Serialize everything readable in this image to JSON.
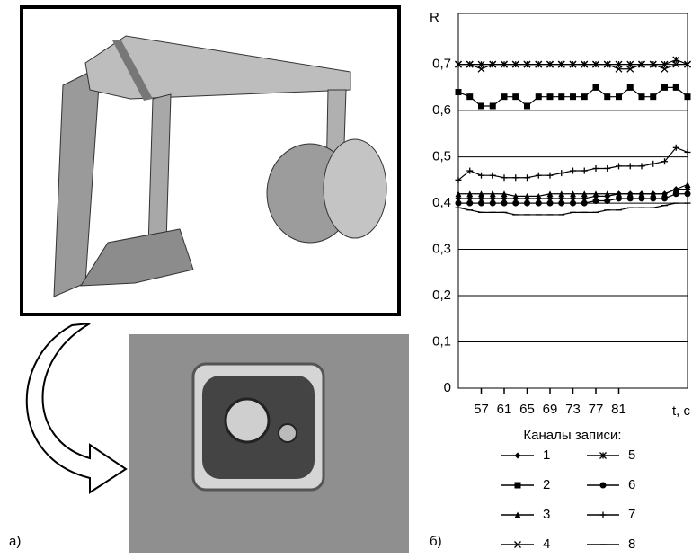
{
  "figure": {
    "label_a": "а)",
    "label_b": "б)"
  },
  "chart_data": {
    "type": "line",
    "y_label": "R",
    "x_label": "t, c",
    "legend_title": "Каналы записи:",
    "x": [
      53,
      55,
      57,
      59,
      61,
      63,
      65,
      67,
      69,
      71,
      73,
      75,
      77,
      79,
      81,
      83,
      85,
      87,
      89,
      91,
      93
    ],
    "xlim": [
      53,
      93
    ],
    "xticks": [
      57,
      61,
      65,
      69,
      73,
      77,
      81
    ],
    "ylim": [
      0,
      0.81
    ],
    "yticks": [
      {
        "value": 0,
        "label": "0"
      },
      {
        "value": 0.1,
        "label": "0,1"
      },
      {
        "value": 0.2,
        "label": "0,2"
      },
      {
        "value": 0.3,
        "label": "0,3"
      },
      {
        "value": 0.4,
        "label": "0,4"
      },
      {
        "value": 0.5,
        "label": "0,5"
      },
      {
        "value": 0.6,
        "label": "0,6"
      },
      {
        "value": 0.7,
        "label": "0,7"
      }
    ],
    "grid": true,
    "series": [
      {
        "name": "1",
        "color": "#000000",
        "marker": "diamond",
        "values": [
          0.41,
          0.41,
          0.41,
          0.41,
          0.41,
          0.41,
          0.41,
          0.41,
          0.41,
          0.41,
          0.41,
          0.41,
          0.415,
          0.415,
          0.42,
          0.42,
          0.42,
          0.42,
          0.42,
          0.43,
          0.43
        ]
      },
      {
        "name": "2",
        "color": "#000000",
        "marker": "square",
        "values": [
          0.64,
          0.63,
          0.61,
          0.61,
          0.63,
          0.63,
          0.61,
          0.63,
          0.63,
          0.63,
          0.63,
          0.63,
          0.65,
          0.63,
          0.63,
          0.65,
          0.63,
          0.63,
          0.65,
          0.65,
          0.63
        ]
      },
      {
        "name": "3",
        "color": "#000000",
        "marker": "triangle",
        "values": [
          0.42,
          0.42,
          0.42,
          0.42,
          0.42,
          0.415,
          0.415,
          0.415,
          0.42,
          0.42,
          0.42,
          0.42,
          0.42,
          0.42,
          0.42,
          0.42,
          0.42,
          0.42,
          0.42,
          0.43,
          0.44
        ]
      },
      {
        "name": "4",
        "color": "#000000",
        "marker": "x",
        "values": [
          0.7,
          0.7,
          0.69,
          0.7,
          0.7,
          0.7,
          0.7,
          0.7,
          0.7,
          0.7,
          0.7,
          0.7,
          0.7,
          0.7,
          0.69,
          0.69,
          0.7,
          0.7,
          0.69,
          0.7,
          0.7
        ]
      },
      {
        "name": "5",
        "color": "#000000",
        "marker": "star",
        "values": [
          0.7,
          0.7,
          0.7,
          0.7,
          0.7,
          0.7,
          0.7,
          0.7,
          0.7,
          0.7,
          0.7,
          0.7,
          0.7,
          0.7,
          0.7,
          0.7,
          0.7,
          0.7,
          0.7,
          0.71,
          0.7
        ]
      },
      {
        "name": "6",
        "color": "#000000",
        "marker": "circle",
        "values": [
          0.4,
          0.4,
          0.4,
          0.4,
          0.4,
          0.4,
          0.4,
          0.4,
          0.4,
          0.4,
          0.4,
          0.4,
          0.405,
          0.405,
          0.41,
          0.41,
          0.41,
          0.41,
          0.41,
          0.42,
          0.42
        ]
      },
      {
        "name": "7",
        "color": "#000000",
        "marker": "plus",
        "values": [
          0.45,
          0.47,
          0.46,
          0.46,
          0.455,
          0.455,
          0.455,
          0.46,
          0.46,
          0.465,
          0.47,
          0.47,
          0.475,
          0.475,
          0.48,
          0.48,
          0.48,
          0.485,
          0.49,
          0.52,
          0.51
        ]
      },
      {
        "name": "8",
        "color": "#000000",
        "marker": "dash",
        "values": [
          0.39,
          0.385,
          0.38,
          0.38,
          0.38,
          0.375,
          0.375,
          0.375,
          0.375,
          0.375,
          0.38,
          0.38,
          0.38,
          0.385,
          0.385,
          0.39,
          0.39,
          0.39,
          0.395,
          0.4,
          0.4
        ]
      }
    ]
  }
}
